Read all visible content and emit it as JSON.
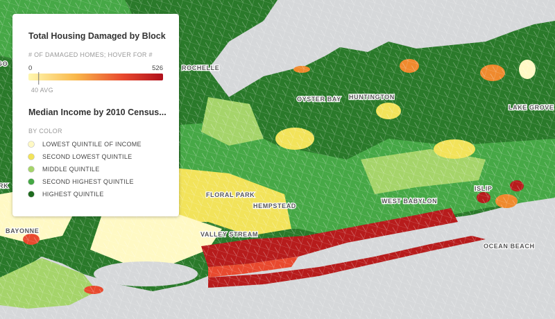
{
  "legend": {
    "damage": {
      "title": "Total Housing Damaged by Block",
      "subtitle": "# OF DAMAGED HOMES; HOVER FOR #",
      "scale": {
        "min": 0,
        "max": 526
      },
      "average": {
        "value": 40,
        "label": "40 AVG"
      }
    },
    "income": {
      "title": "Median Income by 2010 Census...",
      "subtitle": "BY COLOR",
      "items": [
        {
          "label": "LOWEST QUINTILE OF INCOME",
          "color": "#fff9c4"
        },
        {
          "label": "SECOND LOWEST QUINTILE",
          "color": "#f2e35a"
        },
        {
          "label": "MIDDLE QUINTILE",
          "color": "#a5d46a"
        },
        {
          "label": "SECOND HIGHEST QUINTILE",
          "color": "#45a845"
        },
        {
          "label": "HIGHEST QUINTILE",
          "color": "#1f6b1f"
        }
      ]
    }
  },
  "places": [
    "GO",
    "ROCHELLE",
    "OYSTER BAY",
    "HUNTINGTON",
    "LAKE GROVE",
    "RK",
    "FLORAL PARK",
    "HEMPSTEAD",
    "WEST BABYLON",
    "ISLIP",
    "BAYONNE",
    "VALLEY STREAM",
    "OCEAN BEACH"
  ]
}
